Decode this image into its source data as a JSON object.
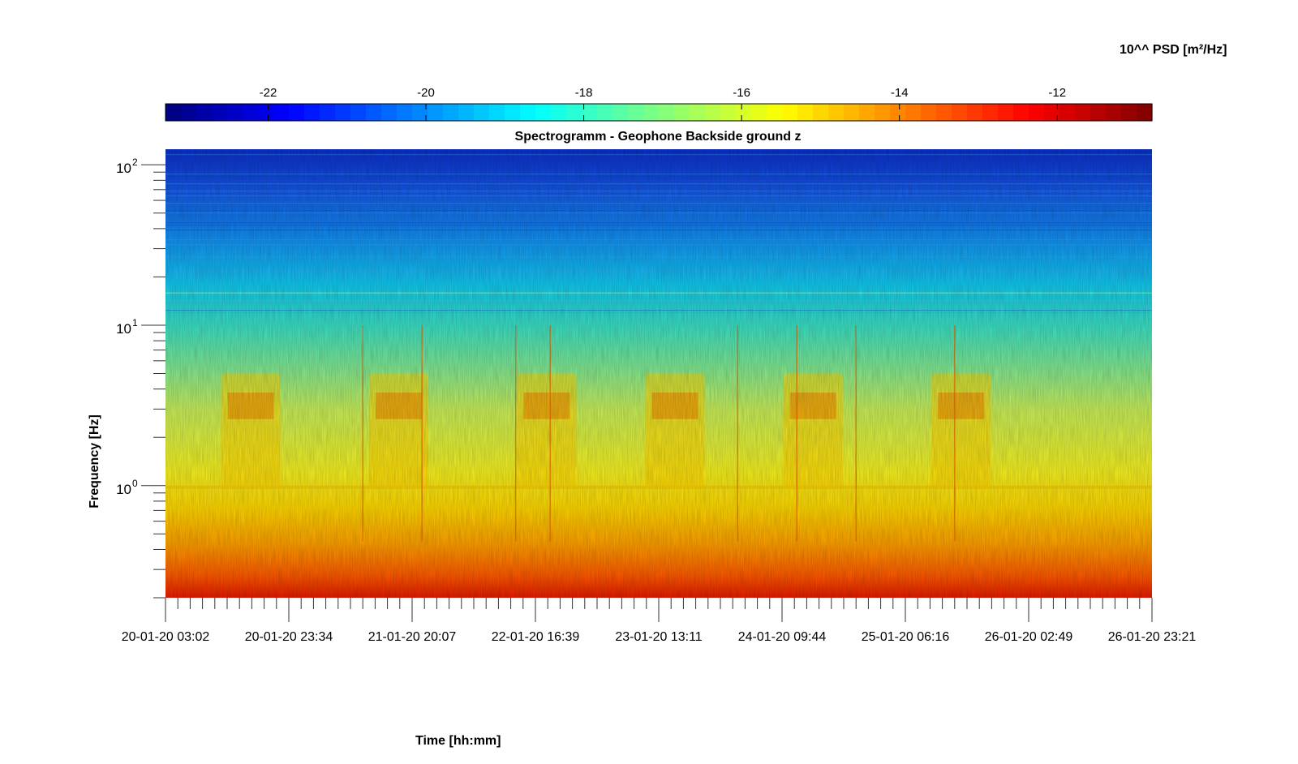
{
  "chart_data": {
    "type": "heatmap",
    "title": "Spectrogramm - Geophone Backside ground z",
    "xlabel": "Time [hh:mm]",
    "ylabel": "Frequency [Hz]",
    "y_scale": "log",
    "y_range_hz": [
      0.2,
      125
    ],
    "x_range": [
      "20-01-20 03:02",
      "26-01-20 23:21"
    ],
    "x_tick_labels": [
      "20-01-20 03:02",
      "20-01-20 23:34",
      "21-01-20 20:07",
      "22-01-20 16:39",
      "23-01-20 13:11",
      "24-01-20 09:44",
      "25-01-20 06:16",
      "26-01-20 02:49",
      "26-01-20 23:21"
    ],
    "y_tick_labels": [
      {
        "base": "10",
        "exp": "2",
        "value": 100
      },
      {
        "base": "10",
        "exp": "1",
        "value": 10
      },
      {
        "base": "10",
        "exp": "0",
        "value": 1
      }
    ],
    "colorbar": {
      "label": "10^^ PSD [m²/Hz]",
      "range": [
        -23.3,
        -10.8
      ],
      "tick_labels": [
        "-22",
        "-20",
        "-18",
        "-16",
        "-14",
        "-12"
      ],
      "tick_values": [
        -22,
        -20,
        -18,
        -16,
        -14,
        -12
      ],
      "colormap": "jet",
      "location": "top"
    },
    "description_values": {
      "daily_activity_bursts_x_fraction": [
        0.07,
        0.22,
        0.37,
        0.5,
        0.64,
        0.79
      ],
      "burst_frequency_range_hz": [
        2,
        5
      ],
      "level_high_freq_log_psd": -20.5,
      "level_mid_freq_log_psd": -17,
      "level_low_freq_log_psd": -13
    }
  }
}
